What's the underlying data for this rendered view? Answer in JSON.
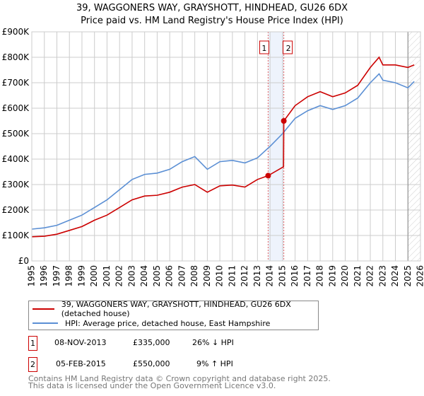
{
  "chart_data": {
    "type": "line",
    "title": "39, WAGGONERS WAY, GRAYSHOTT, HINDHEAD, GU26 6DX",
    "subtitle": "Price paid vs. HM Land Registry's House Price Index (HPI)",
    "xlim": [
      1995,
      2026
    ],
    "ylim": [
      0,
      900000
    ],
    "y_ticks": [
      {
        "v": 0,
        "l": "£0"
      },
      {
        "v": 100000,
        "l": "£100K"
      },
      {
        "v": 200000,
        "l": "£200K"
      },
      {
        "v": 300000,
        "l": "£300K"
      },
      {
        "v": 400000,
        "l": "£400K"
      },
      {
        "v": 500000,
        "l": "£500K"
      },
      {
        "v": 600000,
        "l": "£600K"
      },
      {
        "v": 700000,
        "l": "£700K"
      },
      {
        "v": 800000,
        "l": "£800K"
      },
      {
        "v": 900000,
        "l": "£900K"
      }
    ],
    "x_ticks": [
      "1995",
      "1996",
      "1997",
      "1998",
      "1999",
      "2000",
      "2001",
      "2002",
      "2003",
      "2004",
      "2005",
      "2006",
      "2007",
      "2008",
      "2009",
      "2010",
      "2011",
      "2012",
      "2013",
      "2014",
      "2015",
      "2016",
      "2017",
      "2018",
      "2019",
      "2020",
      "2021",
      "2022",
      "2023",
      "2024",
      "2025",
      "2026"
    ],
    "grid": true,
    "series": [
      {
        "name": "39, WAGGONERS WAY, GRAYSHOTT, HINDHEAD, GU26 6DX (detached house)",
        "color": "#cc0000",
        "x": [
          1995,
          1996,
          1997,
          1998,
          1999,
          2000,
          2001,
          2002,
          2003,
          2004,
          2005,
          2006,
          2007,
          2008,
          2009,
          2010,
          2011,
          2012,
          2013,
          2013.85,
          2015.08,
          2015.1,
          2016,
          2017,
          2018,
          2019,
          2020,
          2021,
          2022,
          2022.7,
          2023,
          2024,
          2025,
          2025.5
        ],
        "y": [
          95000,
          97000,
          105000,
          120000,
          135000,
          160000,
          180000,
          210000,
          240000,
          255000,
          258000,
          270000,
          290000,
          300000,
          270000,
          295000,
          298000,
          290000,
          320000,
          335000,
          370000,
          550000,
          610000,
          645000,
          665000,
          645000,
          660000,
          690000,
          760000,
          800000,
          770000,
          770000,
          760000,
          770000
        ]
      },
      {
        "name": "HPI: Average price, detached house, East Hampshire",
        "color": "#5b8fd4",
        "x": [
          1995,
          1996,
          1997,
          1998,
          1999,
          2000,
          2001,
          2002,
          2003,
          2004,
          2005,
          2006,
          2007,
          2008,
          2009,
          2010,
          2011,
          2012,
          2013,
          2014,
          2015,
          2016,
          2017,
          2018,
          2019,
          2020,
          2021,
          2022,
          2022.7,
          2023,
          2024,
          2025,
          2025.5
        ],
        "y": [
          125000,
          130000,
          140000,
          160000,
          180000,
          210000,
          240000,
          280000,
          320000,
          340000,
          345000,
          360000,
          390000,
          410000,
          360000,
          390000,
          395000,
          385000,
          405000,
          450000,
          500000,
          560000,
          590000,
          610000,
          595000,
          610000,
          640000,
          700000,
          735000,
          710000,
          700000,
          680000,
          705000
        ]
      }
    ],
    "transactions": [
      {
        "n": "1",
        "x": 2013.85,
        "y": 335000,
        "date": "08-NOV-2013",
        "price": "£335,000",
        "hpi": "26% ↓ HPI"
      },
      {
        "n": "2",
        "x": 2015.1,
        "y": 550000,
        "date": "05-FEB-2015",
        "price": "£550,000",
        "hpi": "9% ↑ HPI"
      }
    ],
    "forecast_start": 2025.0
  },
  "footer": [
    "Contains HM Land Registry data © Crown copyright and database right 2025.",
    "This data is licensed under the Open Government Licence v3.0."
  ]
}
